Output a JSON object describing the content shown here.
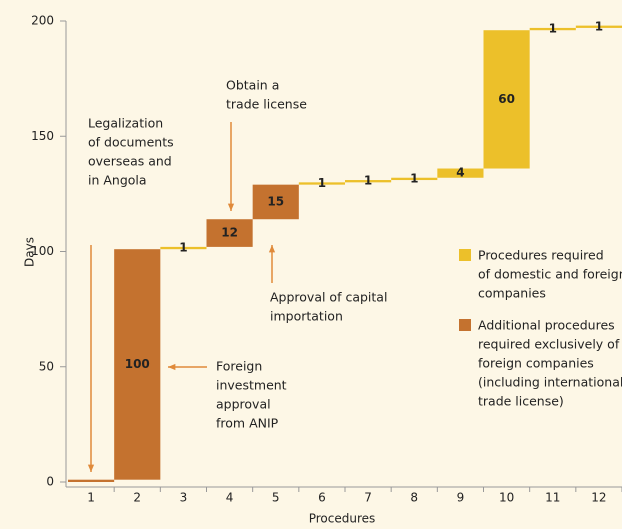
{
  "chart_data": {
    "type": "waterfall",
    "categories": [
      "1",
      "2",
      "3",
      "4",
      "5",
      "6",
      "7",
      "8",
      "9",
      "10",
      "11",
      "12"
    ],
    "values": [
      1,
      100,
      1,
      12,
      15,
      1,
      1,
      1,
      4,
      60,
      1,
      1
    ],
    "value_labels": [
      null,
      "100",
      "1",
      "12",
      "15",
      "1",
      "1",
      "1",
      "4",
      "60",
      "1",
      "1"
    ],
    "bar_group": [
      1,
      1,
      0,
      1,
      1,
      0,
      0,
      0,
      0,
      0,
      0,
      0
    ],
    "legend": [
      {
        "lines": [
          "Procedures required",
          "of domestic and foreign",
          "companies"
        ],
        "color": "#ecc02a"
      },
      {
        "lines": [
          "Additional procedures",
          "required exclusively of",
          "foreign companies",
          "(including international",
          "trade license)"
        ],
        "color": "#c4722f"
      }
    ],
    "ylim": [
      0,
      200
    ],
    "yticks": [
      0,
      50,
      100,
      150,
      200
    ],
    "ylabel": "Days",
    "xlabel": "Procedures",
    "annotations": [
      {
        "lines": [
          "Legalization",
          "of documents",
          "overseas and",
          "in Angola"
        ],
        "target": 0
      },
      {
        "lines": [
          "Foreign",
          "investment",
          "approval",
          "from ANIP"
        ],
        "target": 1
      },
      {
        "lines": [
          "Obtain a",
          "trade license"
        ],
        "target": 3
      },
      {
        "lines": [
          "Approval of capital",
          "importation"
        ],
        "target": 4
      }
    ]
  }
}
